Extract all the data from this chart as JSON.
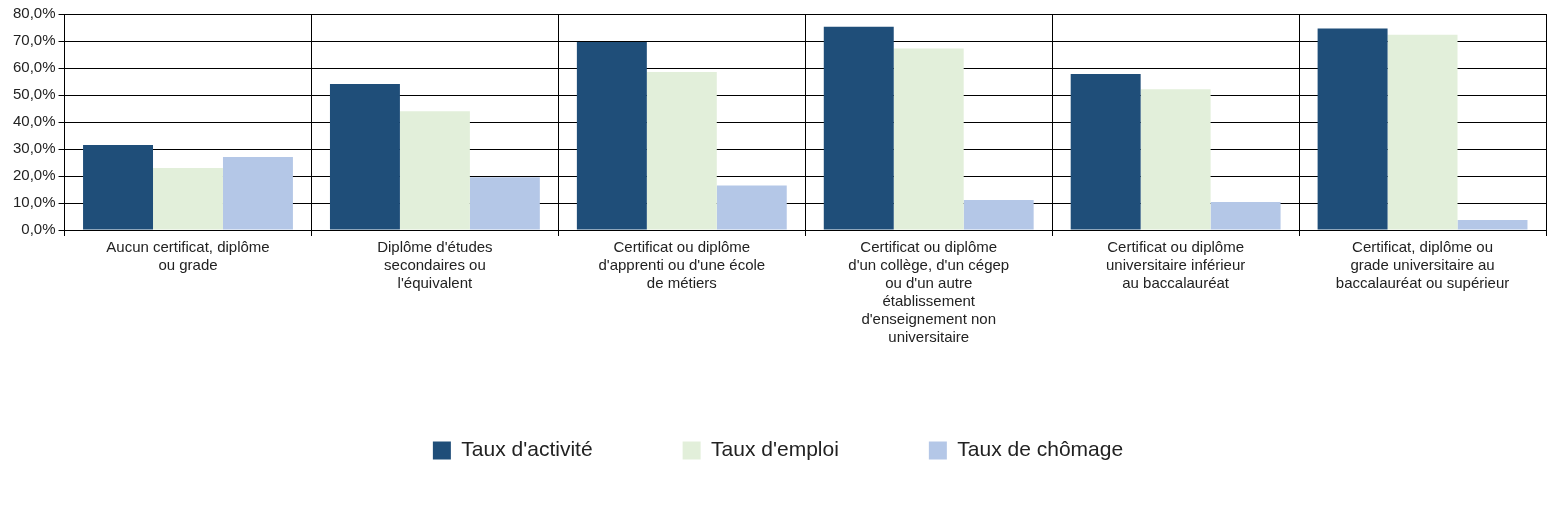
{
  "chart_data": {
    "type": "bar",
    "categories": [
      "Aucun certificat, diplôme ou grade",
      "Diplôme d'études secondaires ou l'équivalent",
      "Certificat ou diplôme d'apprenti ou d'une école de métiers",
      "Certificat ou diplôme d'un collège, d'un cégep ou d'un autre établissement d'enseignement non universitaire",
      "Certificat ou diplôme universitaire inférieur au baccalauréat",
      "Certificat, diplôme ou grade universitaire au baccalauréat ou supérieur"
    ],
    "series": [
      {
        "name": "Taux d'activité",
        "color": "#1f4e79",
        "values": [
          31.5,
          54.1,
          69.6,
          75.3,
          57.8,
          74.6
        ]
      },
      {
        "name": "Taux d'emploi",
        "color": "#e2efda",
        "values": [
          23.0,
          44.0,
          58.5,
          67.2,
          52.1,
          72.3
        ]
      },
      {
        "name": "Taux de chômage",
        "color": "#b4c7e7",
        "values": [
          27.0,
          19.5,
          16.5,
          11.1,
          10.4,
          3.7
        ]
      }
    ],
    "ylim": [
      0,
      80
    ],
    "yticks": [
      {
        "value": 0,
        "label": "0,0%"
      },
      {
        "value": 10,
        "label": "10,0%"
      },
      {
        "value": 20,
        "label": "20,0%"
      },
      {
        "value": 30,
        "label": "30,0%"
      },
      {
        "value": 40,
        "label": "40,0%"
      },
      {
        "value": 50,
        "label": "50,0%"
      },
      {
        "value": 60,
        "label": "60,0%"
      },
      {
        "value": 70,
        "label": "70,0%"
      },
      {
        "value": 80,
        "label": "80,0%"
      }
    ],
    "grid": true,
    "legend": "bottom"
  }
}
